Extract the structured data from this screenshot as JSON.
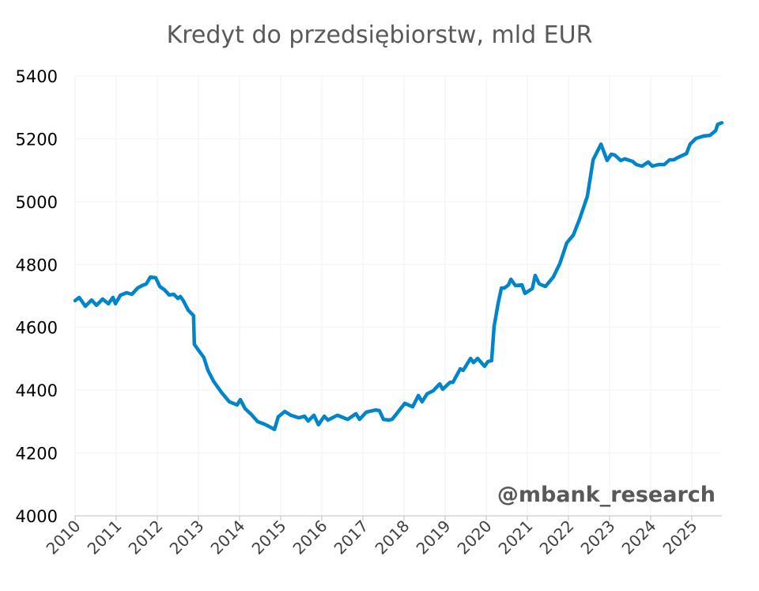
{
  "chart_data": {
    "type": "line",
    "title": "Kredyt do przedsiębiorstw, mld EUR",
    "xlabel": "",
    "ylabel": "",
    "ylim": [
      4000,
      5400
    ],
    "xlim": [
      2010,
      2025.75
    ],
    "yticks": [
      4000,
      4200,
      4400,
      4600,
      4800,
      5000,
      5200,
      5400
    ],
    "xticks": [
      2010,
      2011,
      2012,
      2013,
      2014,
      2015,
      2016,
      2017,
      2018,
      2019,
      2020,
      2021,
      2022,
      2023,
      2024,
      2025
    ],
    "grid": true,
    "legend": "none",
    "watermark": "@mbank_research",
    "line_color": "#0085CA",
    "series": [
      {
        "name": "Kredyt do przedsiębiorstw",
        "points": [
          [
            2010.0,
            4685
          ],
          [
            2010.1,
            4695
          ],
          [
            2010.25,
            4667
          ],
          [
            2010.4,
            4687
          ],
          [
            2010.52,
            4670
          ],
          [
            2010.67,
            4690
          ],
          [
            2010.81,
            4675
          ],
          [
            2010.92,
            4695
          ],
          [
            2010.98,
            4675
          ],
          [
            2011.1,
            4702
          ],
          [
            2011.25,
            4710
          ],
          [
            2011.38,
            4705
          ],
          [
            2011.52,
            4725
          ],
          [
            2011.63,
            4733
          ],
          [
            2011.73,
            4738
          ],
          [
            2011.83,
            4760
          ],
          [
            2011.96,
            4758
          ],
          [
            2012.06,
            4730
          ],
          [
            2012.17,
            4720
          ],
          [
            2012.29,
            4703
          ],
          [
            2012.4,
            4705
          ],
          [
            2012.5,
            4692
          ],
          [
            2012.56,
            4698
          ],
          [
            2012.63,
            4685
          ],
          [
            2012.75,
            4655
          ],
          [
            2012.88,
            4637
          ],
          [
            2012.9,
            4546
          ],
          [
            2013.02,
            4524
          ],
          [
            2013.13,
            4504
          ],
          [
            2013.23,
            4463
          ],
          [
            2013.37,
            4428
          ],
          [
            2013.56,
            4393
          ],
          [
            2013.75,
            4363
          ],
          [
            2013.94,
            4353
          ],
          [
            2014.02,
            4370
          ],
          [
            2014.13,
            4342
          ],
          [
            2014.29,
            4322
          ],
          [
            2014.44,
            4300
          ],
          [
            2014.6,
            4292
          ],
          [
            2014.71,
            4285
          ],
          [
            2014.85,
            4275
          ],
          [
            2014.94,
            4315
          ],
          [
            2015.1,
            4332
          ],
          [
            2015.25,
            4320
          ],
          [
            2015.44,
            4312
          ],
          [
            2015.58,
            4317
          ],
          [
            2015.67,
            4302
          ],
          [
            2015.81,
            4320
          ],
          [
            2015.92,
            4290
          ],
          [
            2016.06,
            4317
          ],
          [
            2016.15,
            4305
          ],
          [
            2016.38,
            4320
          ],
          [
            2016.63,
            4307
          ],
          [
            2016.83,
            4325
          ],
          [
            2016.92,
            4307
          ],
          [
            2017.08,
            4330
          ],
          [
            2017.31,
            4337
          ],
          [
            2017.4,
            4335
          ],
          [
            2017.5,
            4307
          ],
          [
            2017.63,
            4305
          ],
          [
            2017.71,
            4307
          ],
          [
            2017.79,
            4320
          ],
          [
            2018.02,
            4358
          ],
          [
            2018.21,
            4347
          ],
          [
            2018.35,
            4383
          ],
          [
            2018.44,
            4363
          ],
          [
            2018.56,
            4388
          ],
          [
            2018.71,
            4398
          ],
          [
            2018.87,
            4420
          ],
          [
            2018.94,
            4403
          ],
          [
            2019.12,
            4425
          ],
          [
            2019.19,
            4425
          ],
          [
            2019.37,
            4468
          ],
          [
            2019.44,
            4463
          ],
          [
            2019.62,
            4501
          ],
          [
            2019.69,
            4488
          ],
          [
            2019.79,
            4501
          ],
          [
            2019.96,
            4476
          ],
          [
            2020.04,
            4491
          ],
          [
            2020.13,
            4494
          ],
          [
            2020.19,
            4602
          ],
          [
            2020.29,
            4677
          ],
          [
            2020.37,
            4725
          ],
          [
            2020.44,
            4725
          ],
          [
            2020.54,
            4735
          ],
          [
            2020.6,
            4753
          ],
          [
            2020.71,
            4733
          ],
          [
            2020.87,
            4735
          ],
          [
            2020.94,
            4708
          ],
          [
            2021.12,
            4723
          ],
          [
            2021.19,
            4765
          ],
          [
            2021.29,
            4738
          ],
          [
            2021.44,
            4730
          ],
          [
            2021.63,
            4760
          ],
          [
            2021.79,
            4803
          ],
          [
            2021.96,
            4869
          ],
          [
            2022.12,
            4894
          ],
          [
            2022.27,
            4944
          ],
          [
            2022.46,
            5017
          ],
          [
            2022.6,
            5133
          ],
          [
            2022.79,
            5183
          ],
          [
            2022.94,
            5131
          ],
          [
            2023.04,
            5151
          ],
          [
            2023.13,
            5148
          ],
          [
            2023.27,
            5131
          ],
          [
            2023.37,
            5136
          ],
          [
            2023.56,
            5128
          ],
          [
            2023.65,
            5118
          ],
          [
            2023.79,
            5113
          ],
          [
            2023.94,
            5126
          ],
          [
            2024.04,
            5113
          ],
          [
            2024.19,
            5118
          ],
          [
            2024.33,
            5118
          ],
          [
            2024.46,
            5133
          ],
          [
            2024.56,
            5133
          ],
          [
            2024.67,
            5141
          ],
          [
            2024.87,
            5153
          ],
          [
            2024.96,
            5183
          ],
          [
            2025.1,
            5201
          ],
          [
            2025.29,
            5209
          ],
          [
            2025.44,
            5211
          ],
          [
            2025.58,
            5226
          ],
          [
            2025.63,
            5246
          ],
          [
            2025.73,
            5251
          ]
        ]
      }
    ]
  }
}
